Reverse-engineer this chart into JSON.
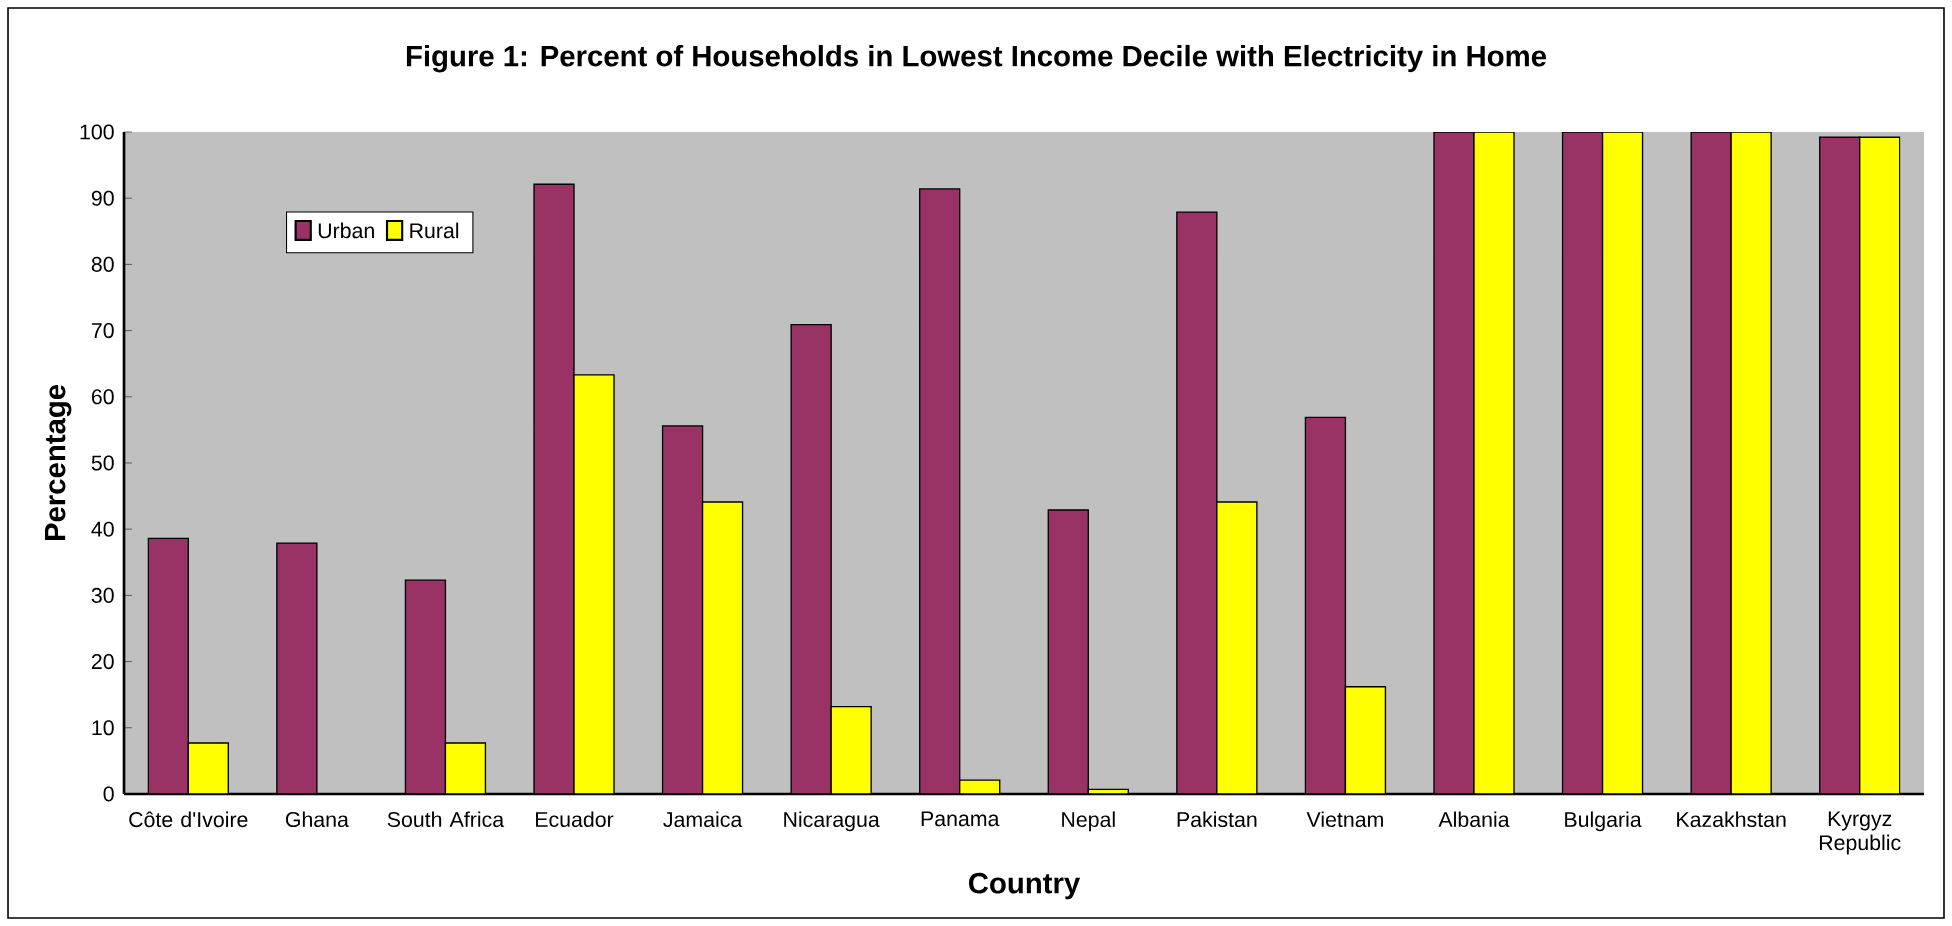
{
  "chart_data": {
    "type": "bar",
    "title": "Figure 1: Percent of Households in Lowest Income Decile with Electricity in Home",
    "xlabel": "Country",
    "ylabel": "Percentage",
    "categories": [
      "Côte d'Ivoire",
      "Ghana",
      "South Africa",
      "Ecuador",
      "Jamaica",
      "Nicaragua",
      "Panama",
      "Nepal",
      "Pakistan",
      "Vietnam",
      "Albania",
      "Bulgaria",
      "Kazakhstan",
      "Kyrgyz Republic"
    ],
    "series": [
      {
        "name": "Urban",
        "color": "#993366",
        "values": [
          38.6,
          37.9,
          32.3,
          92.1,
          55.6,
          70.9,
          91.4,
          42.9,
          87.9,
          56.9,
          100,
          100,
          100,
          99.2
        ]
      },
      {
        "name": "Rural",
        "color": "#ffff00",
        "values": [
          7.7,
          null,
          7.7,
          63.3,
          44.1,
          13.2,
          2.1,
          0.7,
          44.1,
          16.2,
          100,
          100,
          100,
          99.2
        ]
      }
    ],
    "ylim": [
      0,
      100
    ],
    "yticks": [
      0,
      10,
      20,
      30,
      40,
      50,
      60,
      70,
      80,
      90,
      100
    ],
    "legend": "top left"
  }
}
